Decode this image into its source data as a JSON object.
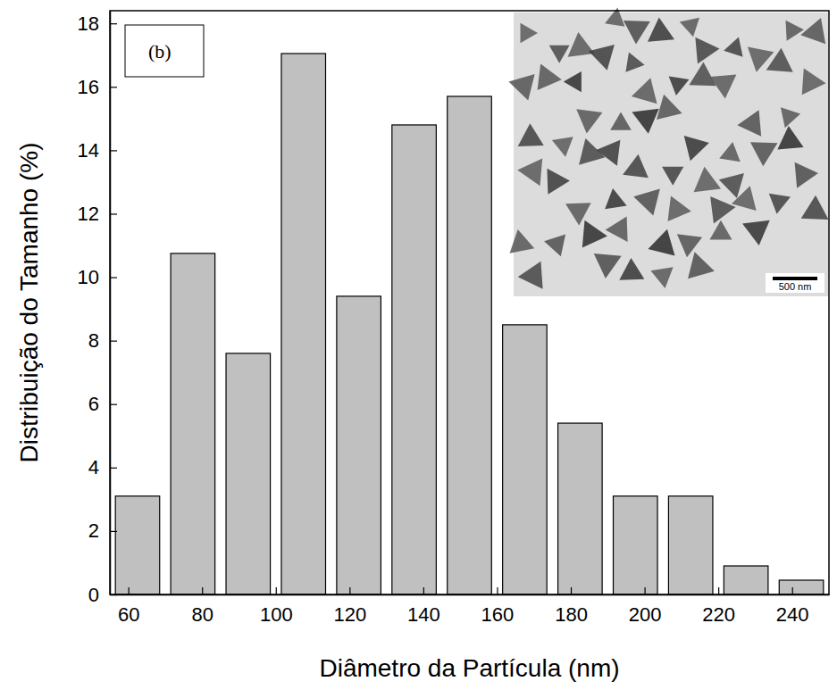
{
  "chart_data": {
    "type": "histogram",
    "x_label": "Diâmetro da Partícula (nm)",
    "y_label": "Distribuição do Tamanho (%)",
    "annotations": [
      "(b)",
      "500 nm"
    ],
    "bins": [
      55,
      70,
      85,
      100,
      115,
      130,
      145,
      160,
      175,
      190,
      205,
      220,
      235,
      250
    ],
    "values": [
      3.1,
      10.75,
      7.6,
      17.05,
      9.4,
      14.8,
      15.7,
      8.5,
      5.4,
      3.1,
      3.1,
      0.9,
      0.45
    ],
    "color": "#c0c0c0",
    "xlim": [
      55,
      250
    ],
    "xticks": [
      60,
      80,
      100,
      120,
      140,
      160,
      180,
      200,
      220,
      240
    ],
    "ylim": [
      0,
      18.4
    ],
    "yticks": [
      0,
      2,
      4,
      6,
      8,
      10,
      12,
      14,
      16,
      18
    ],
    "grid": false
  }
}
